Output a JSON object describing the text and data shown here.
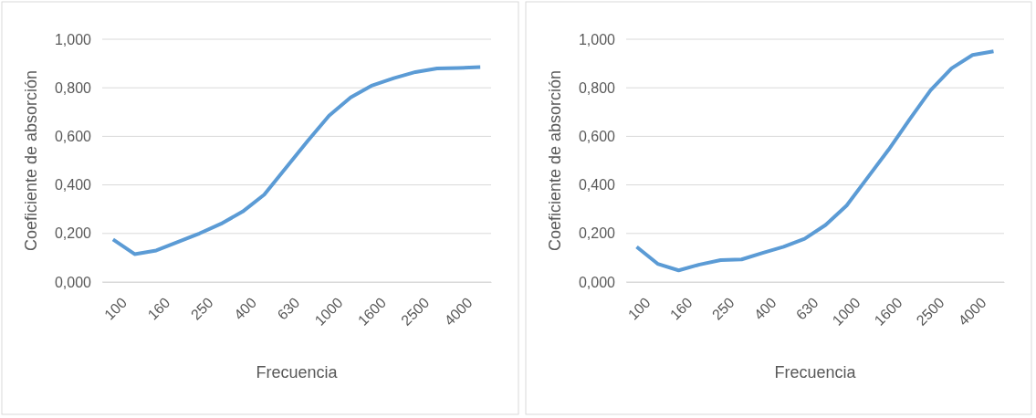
{
  "chart_data": [
    {
      "type": "line",
      "xlabel": "Frecuencia",
      "ylabel": "Coeficiente de absorción",
      "categories": [
        "100",
        null,
        "160",
        null,
        "250",
        null,
        "400",
        null,
        "630",
        null,
        "1000",
        null,
        "1600",
        null,
        "2500",
        null,
        "4000",
        null
      ],
      "series": [
        {
          "color": "#5b9bd5",
          "values": [
            0.175,
            0.115,
            0.13,
            0.165,
            0.2,
            0.24,
            0.29,
            0.36,
            0.47,
            0.58,
            0.685,
            0.76,
            0.81,
            0.84,
            0.865,
            0.88,
            0.882,
            0.885
          ]
        }
      ],
      "ylim": [
        0,
        1
      ],
      "yticks": [
        {
          "value": 0,
          "label": "0,000"
        },
        {
          "value": 0.2,
          "label": "0,200"
        },
        {
          "value": 0.4,
          "label": "0,400"
        },
        {
          "value": 0.6,
          "label": "0,600"
        },
        {
          "value": 0.8,
          "label": "0,800"
        },
        {
          "value": 1,
          "label": "1,000"
        }
      ],
      "grid": "y",
      "marker": "none",
      "line_style": "solid"
    },
    {
      "type": "line",
      "xlabel": "Frecuencia",
      "ylabel": "Coeficiente de absorción",
      "categories": [
        "100",
        null,
        "160",
        null,
        "250",
        null,
        "400",
        null,
        "630",
        null,
        "1000",
        null,
        "1600",
        null,
        "2500",
        null,
        "4000",
        null
      ],
      "series": [
        {
          "color": "#5b9bd5",
          "values": [
            0.145,
            0.075,
            0.048,
            0.072,
            0.09,
            0.093,
            0.12,
            0.145,
            0.178,
            0.235,
            0.315,
            0.43,
            0.545,
            0.67,
            0.79,
            0.88,
            0.935,
            0.95
          ]
        }
      ],
      "ylim": [
        0,
        1
      ],
      "yticks": [
        {
          "value": 0,
          "label": "0,000"
        },
        {
          "value": 0.2,
          "label": "0,200"
        },
        {
          "value": 0.4,
          "label": "0,400"
        },
        {
          "value": 0.6,
          "label": "0,600"
        },
        {
          "value": 0.8,
          "label": "0,800"
        },
        {
          "value": 1,
          "label": "1,000"
        }
      ],
      "grid": "y",
      "marker": "none",
      "line_style": "solid"
    }
  ]
}
